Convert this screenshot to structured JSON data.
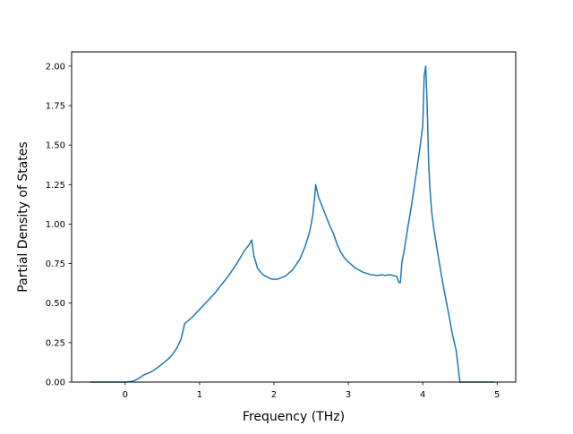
{
  "chart_data": {
    "type": "line",
    "title": "",
    "xlabel": "Frequency (THz)",
    "ylabel": "Partial Density of States",
    "xlim": [
      -0.72,
      5.25
    ],
    "ylim": [
      0,
      2.09
    ],
    "xticks": [
      0,
      1,
      2,
      3,
      4,
      5
    ],
    "yticks": [
      0.0,
      0.25,
      0.5,
      0.75,
      1.0,
      1.25,
      1.5,
      1.75,
      2.0
    ],
    "xtick_labels": [
      "0",
      "1",
      "2",
      "3",
      "4",
      "5"
    ],
    "ytick_labels": [
      "0.00",
      "0.25",
      "0.50",
      "0.75",
      "1.00",
      "1.25",
      "1.50",
      "1.75",
      "2.00"
    ],
    "grid": false,
    "legend": "none",
    "series": [
      {
        "color": "#1f77b4",
        "x": [
          -0.47,
          -0.2,
          0.0,
          0.1,
          0.15,
          0.2,
          0.25,
          0.3,
          0.35,
          0.4,
          0.5,
          0.6,
          0.65,
          0.7,
          0.75,
          0.77,
          0.8,
          0.85,
          0.9,
          1.0,
          1.1,
          1.2,
          1.3,
          1.4,
          1.5,
          1.6,
          1.65,
          1.68,
          1.7,
          1.73,
          1.78,
          1.85,
          1.95,
          2.0,
          2.05,
          2.15,
          2.25,
          2.35,
          2.42,
          2.48,
          2.52,
          2.55,
          2.56,
          2.58,
          2.6,
          2.65,
          2.7,
          2.75,
          2.8,
          2.85,
          2.9,
          2.95,
          3.0,
          3.1,
          3.2,
          3.3,
          3.4,
          3.45,
          3.5,
          3.55,
          3.6,
          3.65,
          3.68,
          3.7,
          3.72,
          3.75,
          3.8,
          3.85,
          3.9,
          3.95,
          4.0,
          4.02,
          4.04,
          4.06,
          4.08,
          4.1,
          4.12,
          4.15,
          4.2,
          4.25,
          4.3,
          4.35,
          4.4,
          4.45,
          4.5,
          4.52,
          4.55,
          4.6,
          4.8,
          4.97
        ],
        "y": [
          0.0,
          0.0,
          0.0,
          0.005,
          0.015,
          0.03,
          0.045,
          0.055,
          0.065,
          0.08,
          0.115,
          0.155,
          0.185,
          0.22,
          0.27,
          0.31,
          0.37,
          0.39,
          0.41,
          0.46,
          0.51,
          0.56,
          0.62,
          0.68,
          0.75,
          0.83,
          0.86,
          0.88,
          0.9,
          0.8,
          0.72,
          0.68,
          0.655,
          0.65,
          0.652,
          0.67,
          0.71,
          0.78,
          0.86,
          0.95,
          1.05,
          1.18,
          1.25,
          1.21,
          1.17,
          1.11,
          1.05,
          0.99,
          0.94,
          0.87,
          0.82,
          0.785,
          0.76,
          0.72,
          0.695,
          0.68,
          0.675,
          0.68,
          0.675,
          0.68,
          0.675,
          0.67,
          0.63,
          0.63,
          0.76,
          0.83,
          0.98,
          1.12,
          1.28,
          1.44,
          1.62,
          1.94,
          2.0,
          1.75,
          1.38,
          1.2,
          1.08,
          0.97,
          0.82,
          0.68,
          0.55,
          0.43,
          0.3,
          0.2,
          0.0,
          0.0,
          0.0,
          0.0,
          0.0,
          0.0
        ]
      }
    ]
  }
}
